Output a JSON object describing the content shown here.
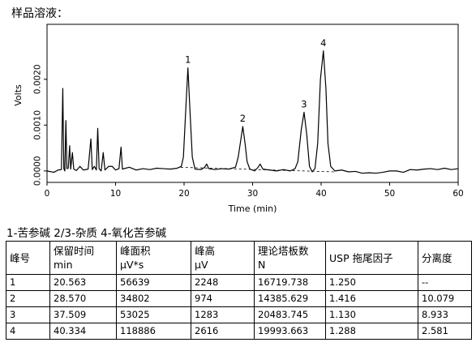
{
  "sample_title": "样品溶液：",
  "peaks_legend": "1-苦参碱 2/3-杂质 4-氧化苦参碱",
  "chart_data": {
    "type": "line",
    "xlabel": "Time (min)",
    "ylabel": "Volts",
    "xlim": [
      0,
      60
    ],
    "ylim": [
      -0.00025,
      0.0032
    ],
    "x_ticks": [
      "0",
      "10",
      "20",
      "30",
      "40",
      "50",
      "60"
    ],
    "y_ticks": [
      "0.0000",
      "0.0010",
      "0.0020"
    ],
    "grid": false,
    "baseline_style": "dashed",
    "series": [
      {
        "points": [
          [
            0.0,
            0.0
          ],
          [
            1.0,
            -3e-05
          ],
          [
            1.6,
            2e-05
          ],
          [
            2.1,
            3e-05
          ],
          [
            2.3,
            0.0018
          ],
          [
            2.45,
            5e-05
          ],
          [
            2.6,
            0.0
          ],
          [
            2.75,
            0.0011
          ],
          [
            2.9,
            5e-05
          ],
          [
            3.1,
            6e-05
          ],
          [
            3.3,
            0.00055
          ],
          [
            3.45,
            4e-05
          ],
          [
            3.7,
            0.0004
          ],
          [
            3.9,
            4e-05
          ],
          [
            4.3,
            1e-05
          ],
          [
            4.8,
            0.0001
          ],
          [
            5.3,
            2e-05
          ],
          [
            6.0,
            4e-05
          ],
          [
            6.4,
            0.0007
          ],
          [
            6.6,
            3e-05
          ],
          [
            6.9,
            0.0001
          ],
          [
            7.2,
            2e-05
          ],
          [
            7.4,
            0.00093
          ],
          [
            7.6,
            5e-05
          ],
          [
            7.9,
            0.0
          ],
          [
            8.2,
            0.0004
          ],
          [
            8.45,
            2e-05
          ],
          [
            9.0,
            0.0001
          ],
          [
            9.5,
            0.0001
          ],
          [
            10.0,
            2e-05
          ],
          [
            10.5,
            5e-05
          ],
          [
            10.8,
            0.00052
          ],
          [
            11.0,
            4e-05
          ],
          [
            12.0,
            8e-05
          ],
          [
            13.0,
            2e-05
          ],
          [
            14.0,
            5e-05
          ],
          [
            15.0,
            3e-05
          ],
          [
            16.0,
            6e-05
          ],
          [
            17.0,
            5e-05
          ],
          [
            18.0,
            4e-05
          ],
          [
            19.0,
            6e-05
          ],
          [
            19.6,
            0.0001
          ],
          [
            19.9,
            0.0003
          ],
          [
            20.2,
            0.0012
          ],
          [
            20.56,
            0.00225
          ],
          [
            20.9,
            0.0012
          ],
          [
            21.2,
            0.0003
          ],
          [
            21.6,
            4e-05
          ],
          [
            22.5,
            3e-05
          ],
          [
            23.0,
            8e-05
          ],
          [
            23.3,
            0.00015
          ],
          [
            23.6,
            5e-05
          ],
          [
            24.5,
            3e-05
          ],
          [
            25.5,
            5e-05
          ],
          [
            26.5,
            4e-05
          ],
          [
            27.5,
            8e-05
          ],
          [
            27.9,
            0.0003
          ],
          [
            28.3,
            0.0007
          ],
          [
            28.57,
            0.00097
          ],
          [
            28.9,
            0.0006
          ],
          [
            29.2,
            0.0002
          ],
          [
            29.6,
            4e-05
          ],
          [
            30.3,
            0.0
          ],
          [
            30.8,
            8e-05
          ],
          [
            31.1,
            0.00015
          ],
          [
            31.5,
            4e-05
          ],
          [
            32.5,
            2e-05
          ],
          [
            33.5,
            0.0
          ],
          [
            34.5,
            3e-05
          ],
          [
            35.5,
            0.0
          ],
          [
            36.2,
            5e-05
          ],
          [
            36.6,
            0.0002
          ],
          [
            37.1,
            0.0009
          ],
          [
            37.51,
            0.00128
          ],
          [
            37.9,
            0.0008
          ],
          [
            38.3,
            0.0001
          ],
          [
            38.7,
            -2e-05
          ],
          [
            39.1,
            5e-05
          ],
          [
            39.5,
            0.0006
          ],
          [
            39.9,
            0.002
          ],
          [
            40.33,
            0.00262
          ],
          [
            40.7,
            0.0018
          ],
          [
            41.0,
            0.0006
          ],
          [
            41.4,
            0.0001
          ],
          [
            42.0,
            0.0
          ],
          [
            43.0,
            2e-05
          ],
          [
            44.0,
            -2e-05
          ],
          [
            45.0,
            -1e-05
          ],
          [
            46.0,
            -5e-05
          ],
          [
            47.0,
            -4e-05
          ],
          [
            48.0,
            -5e-05
          ],
          [
            49.0,
            -3e-05
          ],
          [
            50.0,
            0.0
          ],
          [
            51.0,
            0.0
          ],
          [
            52.0,
            -3e-05
          ],
          [
            53.0,
            3e-05
          ],
          [
            54.0,
            2e-05
          ],
          [
            55.0,
            4e-05
          ],
          [
            56.0,
            5e-05
          ],
          [
            57.0,
            3e-05
          ],
          [
            58.0,
            6e-05
          ],
          [
            59.0,
            3e-05
          ],
          [
            60.0,
            5e-05
          ]
        ]
      }
    ],
    "peak_labels": [
      {
        "text": "1",
        "x": 20.56,
        "y": 0.00225
      },
      {
        "text": "2",
        "x": 28.57,
        "y": 0.00097
      },
      {
        "text": "3",
        "x": 37.51,
        "y": 0.00128
      },
      {
        "text": "4",
        "x": 40.33,
        "y": 0.00262
      }
    ]
  },
  "table": {
    "columns": [
      {
        "main": "峰号",
        "sub": ""
      },
      {
        "main": "保留时间",
        "sub": "min"
      },
      {
        "main": "峰面积",
        "sub": "µV*s"
      },
      {
        "main": "峰高",
        "sub": "µV"
      },
      {
        "main": "理论塔板数",
        "sub": "N"
      },
      {
        "main": "USP 拖尾因子",
        "sub": ""
      },
      {
        "main": "分离度",
        "sub": ""
      }
    ],
    "rows": [
      [
        "1",
        "20.563",
        "56639",
        "2248",
        "16719.738",
        "1.250",
        "--"
      ],
      [
        "2",
        "28.570",
        "34802",
        "974",
        "14385.629",
        "1.416",
        "10.079"
      ],
      [
        "3",
        "37.509",
        "53025",
        "1283",
        "20483.745",
        "1.130",
        "8.933"
      ],
      [
        "4",
        "40.334",
        "118886",
        "2616",
        "19993.663",
        "1.288",
        "2.581"
      ]
    ]
  }
}
